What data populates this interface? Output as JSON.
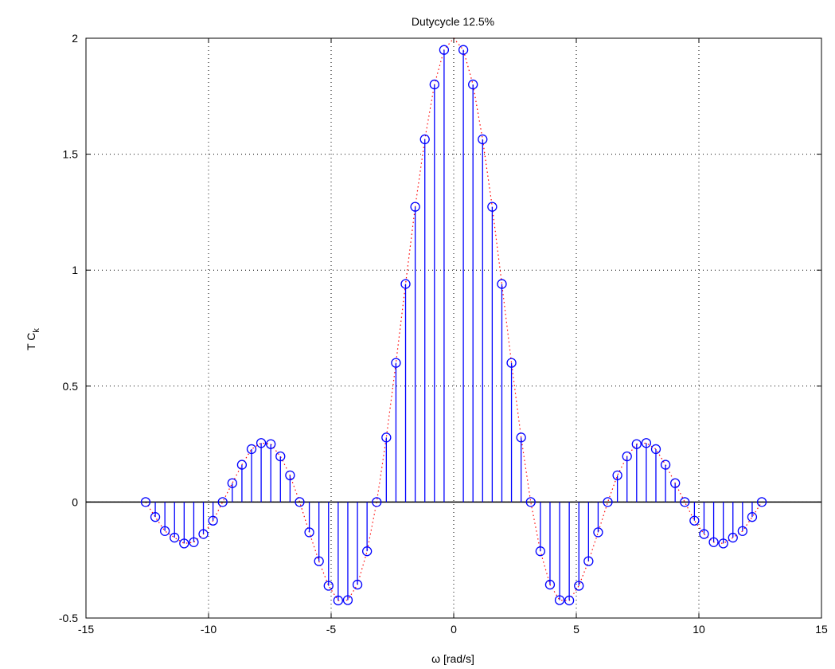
{
  "chart_data": {
    "type": "stem",
    "title": "Dutycycle 12.5%",
    "xlabel": "ω [rad/s]",
    "ylabel": "T C",
    "ylabel_subscript": "k",
    "xlim": [
      -15,
      15
    ],
    "ylim": [
      -0.5,
      2
    ],
    "xticks": [
      -15,
      -10,
      -5,
      0,
      5,
      10,
      15
    ],
    "yticks": [
      -0.5,
      0,
      0.5,
      1,
      1.5,
      2
    ],
    "grid": true,
    "colors": {
      "stem": "#0000ff",
      "envelope": "#ff0000",
      "axis": "#000000"
    },
    "envelope_peak": 2,
    "x": [
      -12.5664,
      -12.1737,
      -11.781,
      -11.3883,
      -10.9956,
      -10.6029,
      -10.2102,
      -9.8175,
      -9.4248,
      -9.0321,
      -8.6394,
      -8.2467,
      -7.854,
      -7.4613,
      -7.0686,
      -6.6759,
      -6.2832,
      -5.8905,
      -5.4978,
      -5.1051,
      -4.7124,
      -4.3197,
      -3.927,
      -3.5343,
      -3.1416,
      -2.7489,
      -2.3562,
      -1.9635,
      -1.5708,
      -1.1781,
      -0.7854,
      -0.3927,
      0.3927,
      0.7854,
      1.1781,
      1.5708,
      1.9635,
      2.3562,
      2.7489,
      3.1416,
      3.5343,
      3.927,
      4.3197,
      4.7124,
      5.1051,
      5.4978,
      5.8905,
      6.2832,
      6.6759,
      7.0686,
      7.4613,
      7.854,
      8.2467,
      8.6394,
      9.0321,
      9.4248,
      9.8175,
      10.2102,
      10.6029,
      10.9956,
      11.3883,
      11.781,
      12.1737,
      12.5664
    ],
    "values": [
      0.0,
      -0.0645,
      -0.1249,
      -0.1533,
      -0.1785,
      -0.173,
      -0.1379,
      -0.0801,
      0.0,
      0.0816,
      0.1608,
      0.2283,
      0.2546,
      0.25,
      0.197,
      0.1152,
      0.0,
      -0.1305,
      -0.255,
      -0.3609,
      -0.4243,
      -0.4227,
      -0.356,
      -0.2121,
      0.0,
      0.2784,
      0.6003,
      0.9403,
      1.2732,
      1.5641,
      1.8006,
      1.9496,
      1.9496,
      1.8006,
      1.5641,
      1.2732,
      0.9403,
      0.6003,
      0.2784,
      0.0,
      -0.2121,
      -0.356,
      -0.4227,
      -0.4243,
      -0.3609,
      -0.255,
      -0.1305,
      0.0,
      0.1152,
      0.197,
      0.25,
      0.2546,
      0.2283,
      0.1608,
      0.0816,
      0.0,
      -0.0801,
      -0.1379,
      -0.173,
      -0.1785,
      -0.1533,
      -0.1249,
      -0.0645,
      0.0
    ]
  }
}
